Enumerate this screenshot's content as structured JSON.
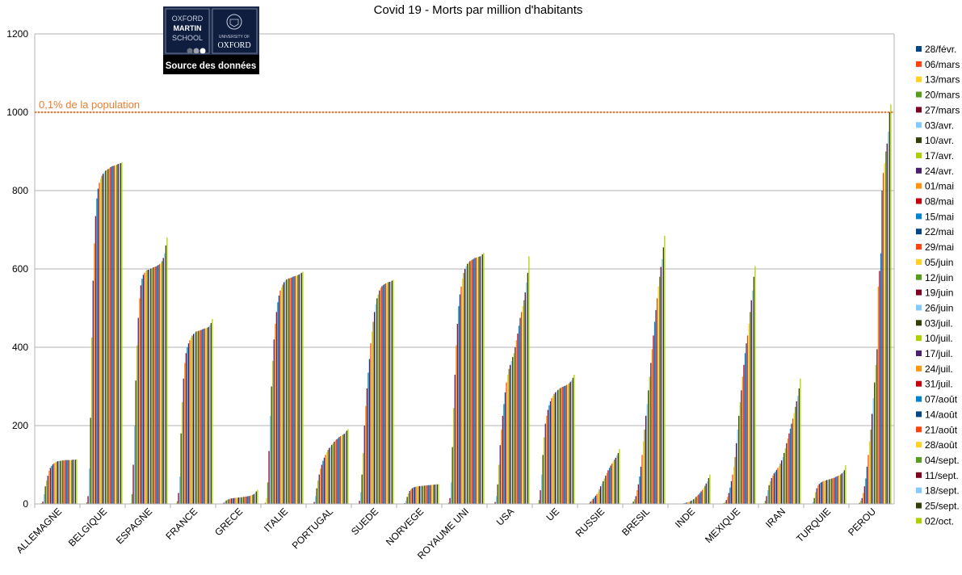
{
  "chart_data": {
    "type": "bar",
    "title": "Covid 19 - Morts par million d'habitants",
    "xlabel": "",
    "ylabel": "",
    "ylim": [
      0,
      1200
    ],
    "yticks": [
      0,
      200,
      400,
      600,
      800,
      1000,
      1200
    ],
    "grid": true,
    "legend_position": "right",
    "reference_line": {
      "value": 1000,
      "label": "0,1% de la population",
      "color": "#ED7D31"
    },
    "source_logo": {
      "line1": "OXFORD",
      "line2": "MARTIN",
      "line3": "SCHOOL",
      "univ1": "UNIVERSITY OF",
      "univ2": "OXFORD",
      "caption": "Source des données"
    },
    "dates": [
      "28/févr.",
      "06/mars",
      "13/mars",
      "20/mars",
      "27/mars",
      "03/avr.",
      "10/avr.",
      "17/avr.",
      "24/avr.",
      "01/mai",
      "08/mai",
      "15/mai",
      "22/mai",
      "29/mai",
      "05/juin",
      "12/juin",
      "19/juin",
      "26/juin",
      "03/juil.",
      "10/juil.",
      "17/juil.",
      "24/juil.",
      "31/juil.",
      "07/août",
      "14/août",
      "21/août",
      "28/août",
      "04/sept.",
      "11/sept.",
      "18/sept.",
      "25/sept.",
      "02/oct."
    ],
    "colors": [
      "#004586",
      "#FF420E",
      "#FFD320",
      "#579D1C",
      "#7E0021",
      "#83CAFF",
      "#314004",
      "#AECF00",
      "#4B1F6F",
      "#FF950E",
      "#C5000B",
      "#0084D1",
      "#004586",
      "#FF420E",
      "#FFD320",
      "#579D1C",
      "#7E0021",
      "#83CAFF",
      "#314004",
      "#AECF00",
      "#4B1F6F",
      "#FF950E",
      "#C5000B",
      "#0084D1",
      "#004586",
      "#FF420E",
      "#FFD320",
      "#579D1C",
      "#7E0021",
      "#83CAFF",
      "#314004",
      "#AECF00"
    ],
    "categories": [
      {
        "name": "ALLEMAGNE",
        "values": [
          0,
          0,
          0.5,
          2,
          6,
          25,
          45,
          60,
          72,
          85,
          92,
          97,
          101,
          104,
          106,
          108,
          109,
          110,
          110,
          111,
          111,
          111,
          112,
          112,
          112,
          112,
          112,
          112,
          113,
          113,
          113,
          114
        ]
      },
      {
        "name": "BELGIQUE",
        "values": [
          0,
          0,
          1,
          4,
          20,
          90,
          220,
          425,
          570,
          665,
          735,
          780,
          805,
          820,
          830,
          838,
          843,
          848,
          851,
          853,
          855,
          857,
          860,
          862,
          863,
          864,
          865,
          866,
          868,
          869,
          870,
          872
        ]
      },
      {
        "name": "ESPAGNE",
        "values": [
          0,
          0,
          2,
          25,
          100,
          200,
          315,
          405,
          475,
          525,
          558,
          575,
          585,
          590,
          595,
          597,
          598,
          600,
          601,
          602,
          604,
          605,
          606,
          608,
          610,
          612,
          615,
          620,
          628,
          640,
          660,
          680
        ]
      },
      {
        "name": "FRANCE",
        "values": [
          0,
          0.5,
          2,
          7,
          28,
          70,
          180,
          260,
          320,
          360,
          385,
          400,
          410,
          418,
          425,
          430,
          434,
          437,
          440,
          441,
          442,
          443,
          444,
          446,
          447,
          448,
          449,
          450,
          452,
          456,
          462,
          472
        ]
      },
      {
        "name": "GRECE",
        "values": [
          0,
          0,
          0.2,
          1,
          3,
          6,
          9,
          11,
          12,
          13,
          14,
          14.5,
          15,
          15.5,
          16,
          16,
          16.5,
          17,
          17,
          17.5,
          18,
          18.5,
          19,
          19.5,
          20,
          21,
          22,
          23,
          25,
          28,
          32,
          36
        ]
      },
      {
        "name": "ITALIE",
        "values": [
          0.5,
          3,
          15,
          55,
          135,
          225,
          300,
          365,
          420,
          460,
          490,
          515,
          532,
          545,
          553,
          560,
          566,
          570,
          573,
          575,
          576,
          577,
          578,
          580,
          581,
          582,
          583,
          584,
          586,
          588,
          590,
          593
        ]
      },
      {
        "name": "PORTUGAL",
        "values": [
          0,
          0,
          0.2,
          1,
          5,
          20,
          40,
          60,
          75,
          90,
          100,
          110,
          118,
          125,
          132,
          138,
          143,
          147,
          151,
          155,
          159,
          162,
          165,
          168,
          171,
          173,
          175,
          177,
          179,
          183,
          187,
          191
        ]
      },
      {
        "name": "SUEDE",
        "values": [
          0,
          0,
          0,
          1,
          8,
          30,
          75,
          130,
          200,
          250,
          295,
          335,
          370,
          410,
          440,
          465,
          490,
          510,
          525,
          535,
          545,
          552,
          556,
          559,
          561,
          563,
          565,
          566,
          567,
          568,
          570,
          572
        ]
      },
      {
        "name": "NORVEGE",
        "values": [
          0,
          0,
          0,
          0.5,
          2,
          8,
          18,
          27,
          33,
          37,
          40,
          42,
          43,
          44,
          44.5,
          45,
          45.5,
          46,
          46,
          46.5,
          47,
          47,
          47.5,
          48,
          48,
          48.5,
          49,
          49,
          49.5,
          50,
          50,
          50.5
        ]
      },
      {
        "name": "ROYAUME UNI",
        "values": [
          0,
          0,
          0.5,
          3,
          15,
          55,
          145,
          245,
          330,
          405,
          460,
          505,
          535,
          555,
          575,
          590,
          600,
          607,
          613,
          617,
          620,
          622,
          624,
          626,
          628,
          629,
          630,
          631,
          632,
          634,
          637,
          641
        ]
      },
      {
        "name": "USA",
        "values": [
          0,
          0,
          0.5,
          1,
          5,
          20,
          50,
          100,
          150,
          190,
          225,
          255,
          285,
          310,
          330,
          345,
          355,
          365,
          375,
          385,
          400,
          418,
          435,
          455,
          475,
          490,
          505,
          520,
          540,
          565,
          590,
          632
        ]
      },
      {
        "name": "UE",
        "values": [
          0,
          0.5,
          2,
          10,
          35,
          75,
          125,
          170,
          205,
          225,
          240,
          252,
          262,
          270,
          276,
          281,
          285,
          288,
          291,
          294,
          296,
          298,
          299,
          301,
          302,
          304,
          306,
          308,
          312,
          316,
          322,
          330
        ]
      },
      {
        "name": "RUSSIE",
        "values": [
          0,
          0,
          0,
          0,
          0.2,
          0.5,
          1,
          3,
          6,
          9,
          13,
          17,
          21,
          25,
          30,
          37,
          45,
          52,
          58,
          65,
          72,
          79,
          86,
          92,
          98,
          103,
          108,
          113,
          118,
          124,
          130,
          140
        ]
      },
      {
        "name": "BRESIL",
        "values": [
          0,
          0,
          0,
          0,
          0.5,
          2,
          6,
          12,
          20,
          35,
          50,
          70,
          95,
          125,
          160,
          190,
          225,
          255,
          290,
          325,
          360,
          395,
          430,
          465,
          495,
          525,
          555,
          580,
          605,
          625,
          655,
          685
        ]
      },
      {
        "name": "INDE",
        "values": [
          0,
          0,
          0,
          0,
          0,
          0,
          0.2,
          0.5,
          0.8,
          1,
          1.5,
          2,
          3,
          4,
          5,
          6,
          8,
          10,
          12,
          15,
          18,
          21,
          24,
          28,
          32,
          36,
          41,
          46,
          52,
          58,
          66,
          75
        ]
      },
      {
        "name": "MEXIQUE",
        "values": [
          0,
          0,
          0,
          0,
          0.2,
          1,
          2,
          5,
          10,
          18,
          28,
          42,
          58,
          75,
          95,
          120,
          155,
          190,
          225,
          260,
          290,
          325,
          355,
          385,
          410,
          430,
          460,
          490,
          520,
          545,
          580,
          607
        ]
      },
      {
        "name": "IRAN",
        "values": [
          0,
          0.5,
          2,
          8,
          20,
          35,
          48,
          58,
          66,
          72,
          78,
          82,
          87,
          92,
          97,
          103,
          111,
          120,
          130,
          142,
          155,
          167,
          180,
          192,
          205,
          218,
          232,
          248,
          262,
          276,
          295,
          320
        ]
      },
      {
        "name": "TURQUIE",
        "values": [
          0,
          0,
          0,
          0,
          0.5,
          5,
          15,
          30,
          40,
          47,
          51,
          54,
          56,
          58,
          59,
          60,
          61,
          62,
          63,
          64,
          65,
          66,
          67,
          69,
          70,
          72,
          73,
          75,
          78,
          82,
          86,
          99
        ]
      },
      {
        "name": "PEROU",
        "values": [
          0,
          0,
          0,
          0,
          0.2,
          1,
          3,
          8,
          15,
          28,
          45,
          65,
          95,
          125,
          160,
          190,
          230,
          270,
          310,
          355,
          395,
          555,
          595,
          640,
          800,
          845,
          870,
          900,
          920,
          950,
          1000,
          1020
        ]
      }
    ]
  }
}
